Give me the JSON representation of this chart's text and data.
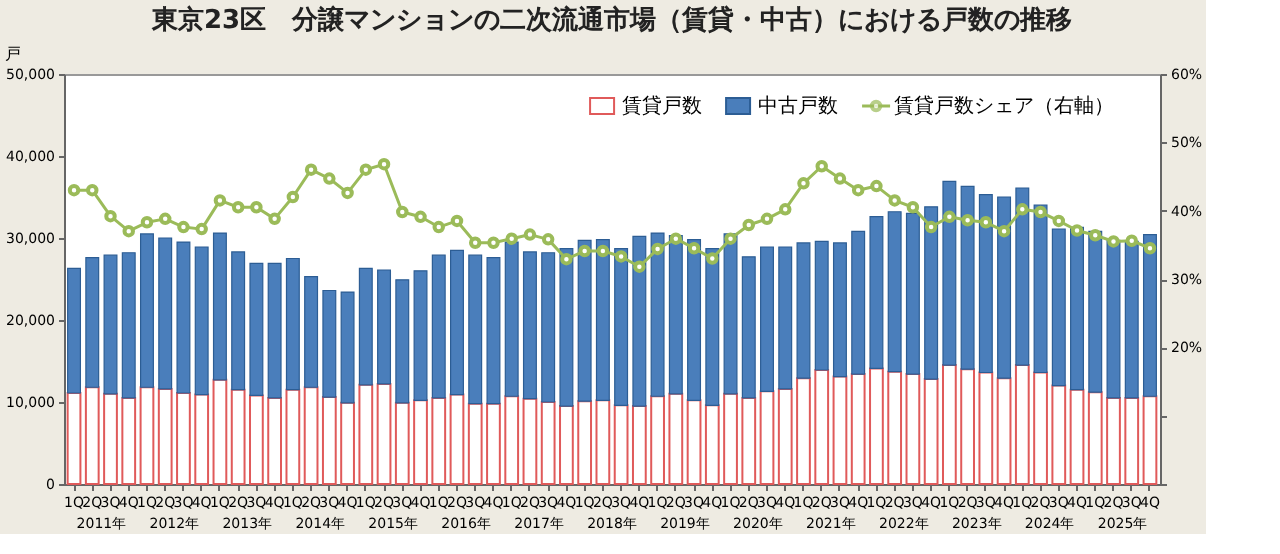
{
  "chart_data": {
    "type": "bar",
    "title": "東京23区　分譲マンションの二次流通市場（賃貸・中古）における戸数の推移",
    "ylabel": "戸",
    "stacked": true,
    "grid": false,
    "legend": "top right",
    "marker": "circle",
    "categories": [
      "1Q",
      "2Q",
      "3Q",
      "4Q",
      "1Q",
      "2Q",
      "3Q",
      "4Q",
      "1Q",
      "2Q",
      "3Q",
      "4Q",
      "1Q",
      "2Q",
      "3Q",
      "4Q",
      "1Q",
      "2Q",
      "3Q",
      "4Q",
      "1Q",
      "2Q",
      "3Q",
      "4Q",
      "1Q",
      "2Q",
      "3Q",
      "4Q",
      "1Q",
      "2Q",
      "3Q",
      "4Q",
      "1Q",
      "2Q",
      "3Q",
      "4Q",
      "1Q",
      "2Q",
      "3Q",
      "4Q",
      "1Q",
      "2Q",
      "3Q",
      "4Q",
      "1Q",
      "2Q",
      "3Q",
      "4Q",
      "1Q",
      "2Q",
      "3Q",
      "4Q",
      "1Q",
      "2Q",
      "3Q",
      "4Q",
      "1Q",
      "2Q",
      "3Q",
      "4Q"
    ],
    "annotations": [
      "2011年",
      "2012年",
      "2013年",
      "2014年",
      "2015年",
      "2016年",
      "2017年",
      "2018年",
      "2019年",
      "2020年",
      "2021年",
      "2022年",
      "2023年",
      "2024年",
      "2025年"
    ],
    "ylim": [
      0,
      50000
    ],
    "yticks": [
      0,
      {
        "value": 10000,
        "label": "10,000"
      },
      {
        "value": 20000,
        "label": "20,000"
      },
      {
        "value": 30000,
        "label": "30,000"
      },
      {
        "value": 40000,
        "label": "40,000"
      },
      {
        "value": 50000,
        "label": "50,000"
      }
    ],
    "y2lim": [
      0,
      60
    ],
    "y2ticks": [
      {
        "value": 0,
        "label": null
      },
      {
        "value": 10,
        "label": null
      },
      {
        "value": 20,
        "label": "20%"
      },
      {
        "value": 30,
        "label": "30%"
      },
      {
        "value": 40,
        "label": "40%"
      },
      {
        "value": 50,
        "label": "50%"
      },
      {
        "value": 60,
        "label": "60%"
      }
    ],
    "series": [
      {
        "name": "賃貸戸数",
        "color": "#e05a5a",
        "values": [
          11100,
          11800,
          11000,
          10500,
          11800,
          11600,
          11100,
          10900,
          12700,
          11500,
          10800,
          10500,
          11500,
          11800,
          10600,
          9900,
          12100,
          12200,
          9900,
          10200,
          10500,
          10900,
          9800,
          9800,
          10700,
          10400,
          10000,
          9500,
          10100,
          10200,
          9600,
          9500,
          10700,
          11000,
          10200,
          9600,
          11000,
          10500,
          11300,
          11600,
          12900,
          13900,
          13100,
          13400,
          14100,
          13700,
          13400,
          12800,
          14500,
          14000,
          13600,
          12900,
          14500,
          13600,
          12000,
          11500,
          11200,
          10500,
          10500,
          10700
        ]
      },
      {
        "name": "中古戸数",
        "color": "#4a7ebb",
        "values": [
          15200,
          15800,
          16900,
          17700,
          18700,
          18400,
          18400,
          18000,
          17900,
          16800,
          16100,
          16400,
          16000,
          13500,
          13000,
          13500,
          14200,
          13900,
          15000,
          15800,
          17400,
          17600,
          18100,
          17800,
          18800,
          17900,
          18200,
          19200,
          19600,
          19600,
          19100,
          20700,
          19900,
          19300,
          19600,
          19100,
          19500,
          17200,
          17600,
          17300,
          16500,
          15700,
          16300,
          17400,
          18500,
          19500,
          19600,
          21000,
          22400,
          22300,
          21700,
          22100,
          21600,
          20400,
          19100,
          19800,
          19600,
          19200,
          19100,
          19700
        ]
      },
      {
        "name": "賃貸戸数シェア（右軸）",
        "color": "#9bbb59",
        "type": "line",
        "axis": "y2",
        "values": [
          43.0,
          43.0,
          39.2,
          37.0,
          38.3,
          38.8,
          37.6,
          37.3,
          41.5,
          40.5,
          40.5,
          38.8,
          42.0,
          46.0,
          44.7,
          42.6,
          46.0,
          46.8,
          39.8,
          39.1,
          37.6,
          38.5,
          35.3,
          35.3,
          35.9,
          36.5,
          35.8,
          32.9,
          34.1,
          34.1,
          33.3,
          31.8,
          34.4,
          35.9,
          34.5,
          33.0,
          35.9,
          37.9,
          38.8,
          40.2,
          44.0,
          46.5,
          44.7,
          43.0,
          43.6,
          41.5,
          40.5,
          37.6,
          39.1,
          38.6,
          38.3,
          37.0,
          40.2,
          39.8,
          38.5,
          37.1,
          36.4,
          35.5,
          35.6,
          34.5
        ]
      }
    ]
  }
}
